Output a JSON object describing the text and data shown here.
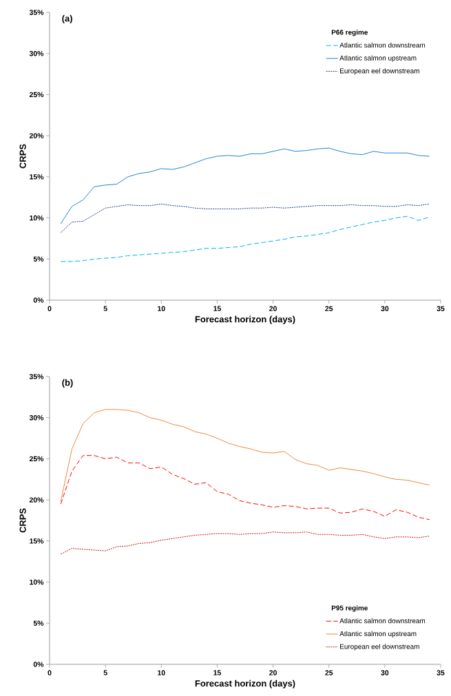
{
  "chart_data": [
    {
      "type": "line",
      "title": "(a)",
      "xlabel": "Forecast horizon (days)",
      "ylabel": "CRPS",
      "legend_title": "P66 regime",
      "legend": "top right",
      "x": [
        1,
        2,
        3,
        4,
        5,
        6,
        7,
        8,
        9,
        10,
        11,
        12,
        13,
        14,
        15,
        16,
        17,
        18,
        19,
        20,
        21,
        22,
        23,
        24,
        25,
        26,
        27,
        28,
        29,
        30,
        31,
        32,
        33,
        34
      ],
      "series": [
        {
          "name": "Atlantic salmon downstream",
          "color": "#00b0f0",
          "line_style": "dashed",
          "values": [
            4.7,
            4.7,
            4.8,
            5.0,
            5.1,
            5.2,
            5.4,
            5.5,
            5.6,
            5.7,
            5.8,
            5.9,
            6.1,
            6.3,
            6.3,
            6.4,
            6.5,
            6.8,
            7.0,
            7.2,
            7.4,
            7.7,
            7.8,
            8.0,
            8.2,
            8.6,
            8.9,
            9.2,
            9.5,
            9.7,
            10.0,
            10.2,
            9.7,
            10.1
          ]
        },
        {
          "name": "Atlantic salmon upstream",
          "color": "#1f84d0",
          "line_style": "solid",
          "values": [
            9.3,
            11.4,
            12.2,
            13.8,
            14.0,
            14.1,
            15.0,
            15.4,
            15.6,
            16.0,
            15.9,
            16.2,
            16.7,
            17.2,
            17.5,
            17.6,
            17.5,
            17.8,
            17.8,
            18.1,
            18.4,
            18.1,
            18.2,
            18.4,
            18.5,
            18.1,
            17.8,
            17.7,
            18.1,
            17.9,
            17.9,
            17.9,
            17.6,
            17.5
          ]
        },
        {
          "name": "European eel downstream",
          "color": "#1f3a8a",
          "line_style": "dotted",
          "values": [
            8.2,
            9.5,
            9.6,
            10.4,
            11.2,
            11.4,
            11.6,
            11.5,
            11.5,
            11.7,
            11.5,
            11.4,
            11.2,
            11.1,
            11.1,
            11.1,
            11.1,
            11.2,
            11.2,
            11.3,
            11.2,
            11.3,
            11.4,
            11.5,
            11.5,
            11.5,
            11.6,
            11.5,
            11.5,
            11.4,
            11.4,
            11.6,
            11.5,
            11.7
          ]
        }
      ],
      "xlim": [
        0,
        35
      ],
      "xticks": [
        0,
        5,
        10,
        15,
        20,
        25,
        30,
        35
      ],
      "ylim": [
        0,
        35
      ],
      "yticks": [
        {
          "value": 0,
          "label": "0%"
        },
        {
          "value": 5,
          "label": "5%"
        },
        {
          "value": 10,
          "label": "10%"
        },
        {
          "value": 15,
          "label": "15%"
        },
        {
          "value": 20,
          "label": "20%"
        },
        {
          "value": 25,
          "label": "25%"
        },
        {
          "value": 30,
          "label": "30%"
        },
        {
          "value": 35,
          "label": "35%"
        }
      ]
    },
    {
      "type": "line",
      "title": "(b)",
      "xlabel": "Forecast horizon (days)",
      "ylabel": "CRPS",
      "legend_title": "P95 regime",
      "legend": "bottom right",
      "x": [
        1,
        2,
        3,
        4,
        5,
        6,
        7,
        8,
        9,
        10,
        11,
        12,
        13,
        14,
        15,
        16,
        17,
        18,
        19,
        20,
        21,
        22,
        23,
        24,
        25,
        26,
        27,
        28,
        29,
        30,
        31,
        32,
        33,
        34
      ],
      "series": [
        {
          "name": "Atlantic salmon downstream",
          "color": "#ff0000",
          "line_style": "dashed",
          "values": [
            19.5,
            23.5,
            25.4,
            25.4,
            25.0,
            25.2,
            24.5,
            24.5,
            23.8,
            24.0,
            23.1,
            22.6,
            21.9,
            22.1,
            21.0,
            20.7,
            19.9,
            19.6,
            19.4,
            19.1,
            19.3,
            19.2,
            18.9,
            19.0,
            19.0,
            18.4,
            18.5,
            18.9,
            18.6,
            18.0,
            18.8,
            18.5,
            17.9,
            17.6
          ]
        },
        {
          "name": "Atlantic salmon upstream",
          "color": "#f0883a",
          "line_style": "solid",
          "values": [
            19.8,
            26.2,
            29.3,
            30.6,
            31.0,
            31.0,
            30.9,
            30.6,
            30.0,
            29.7,
            29.2,
            28.9,
            28.3,
            28.0,
            27.5,
            26.9,
            26.5,
            26.2,
            25.8,
            25.7,
            25.9,
            24.9,
            24.4,
            24.2,
            23.6,
            23.9,
            23.7,
            23.5,
            23.2,
            22.8,
            22.5,
            22.4,
            22.1,
            21.8
          ]
        },
        {
          "name": "European eel downstream",
          "color": "#d01010",
          "line_style": "dotted",
          "values": [
            13.4,
            14.1,
            14.0,
            13.9,
            13.8,
            14.3,
            14.4,
            14.7,
            14.8,
            15.1,
            15.3,
            15.5,
            15.7,
            15.8,
            15.9,
            15.9,
            15.8,
            15.9,
            15.9,
            16.1,
            16.0,
            16.0,
            16.1,
            15.8,
            15.8,
            15.7,
            15.7,
            15.8,
            15.5,
            15.3,
            15.5,
            15.5,
            15.4,
            15.6
          ]
        }
      ],
      "xlim": [
        0,
        35
      ],
      "xticks": [
        0,
        5,
        10,
        15,
        20,
        25,
        30,
        35
      ],
      "ylim": [
        0,
        35
      ],
      "yticks": [
        {
          "value": 0,
          "label": "0%"
        },
        {
          "value": 5,
          "label": "5%"
        },
        {
          "value": 10,
          "label": "10%"
        },
        {
          "value": 15,
          "label": "15%"
        },
        {
          "value": 20,
          "label": "20%"
        },
        {
          "value": 25,
          "label": "25%"
        },
        {
          "value": 30,
          "label": "30%"
        },
        {
          "value": 35,
          "label": "35%"
        }
      ]
    }
  ]
}
